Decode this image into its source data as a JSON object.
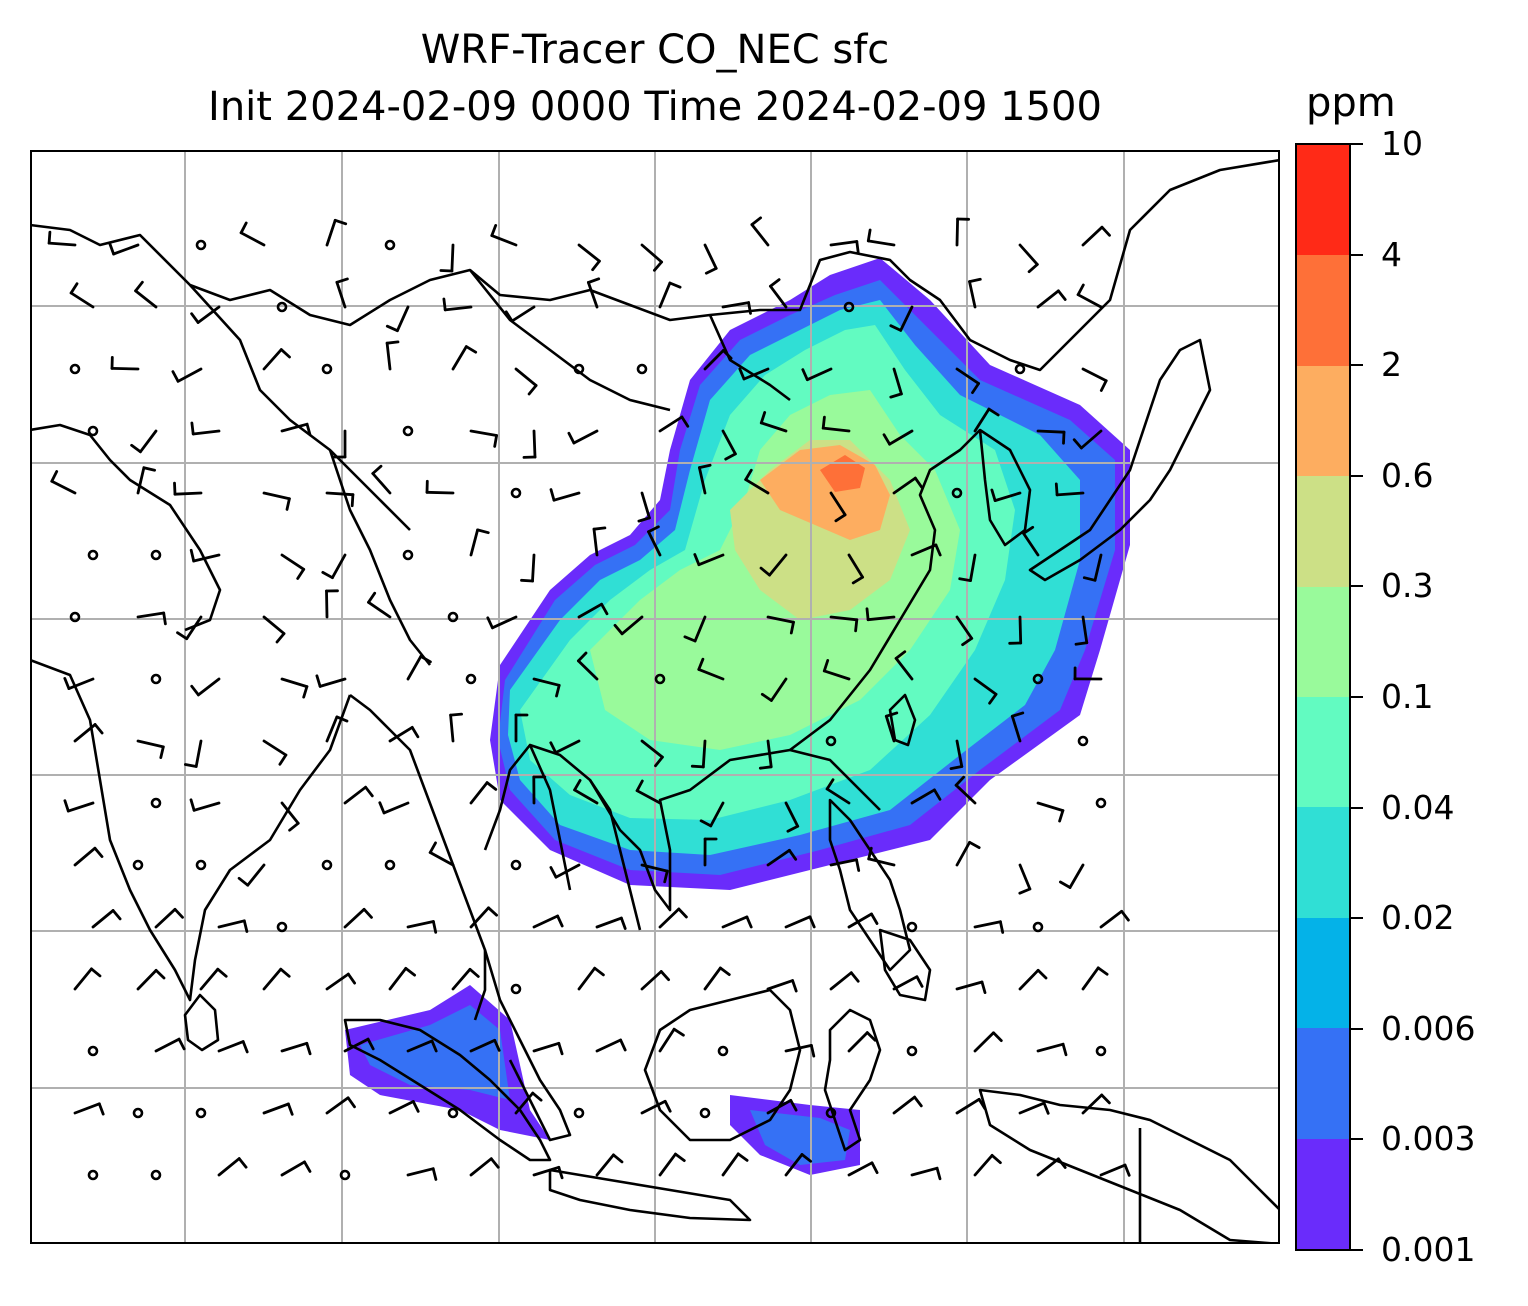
{
  "title": {
    "line1": "WRF-Tracer CO_NEC sfc",
    "line2": "Init 2024-02-09 0000 Time 2024-02-09 1500"
  },
  "colorbar": {
    "units": "ppm",
    "levels": [
      "0.001",
      "0.003",
      "0.006",
      "0.02",
      "0.04",
      "0.1",
      "0.3",
      "0.6",
      "2",
      "4",
      "10"
    ],
    "colors": [
      "#6a2cfb",
      "#3571f5",
      "#04b2e8",
      "#30dfd5",
      "#62fbc1",
      "#99fa9b",
      "#cce086",
      "#fdad60",
      "#fe7038",
      "#ff2a17"
    ]
  },
  "map": {
    "gridlines": "on",
    "grid_color": "#b0b0b0",
    "coastline_color": "#000000",
    "barb_color": "#000000"
  }
}
